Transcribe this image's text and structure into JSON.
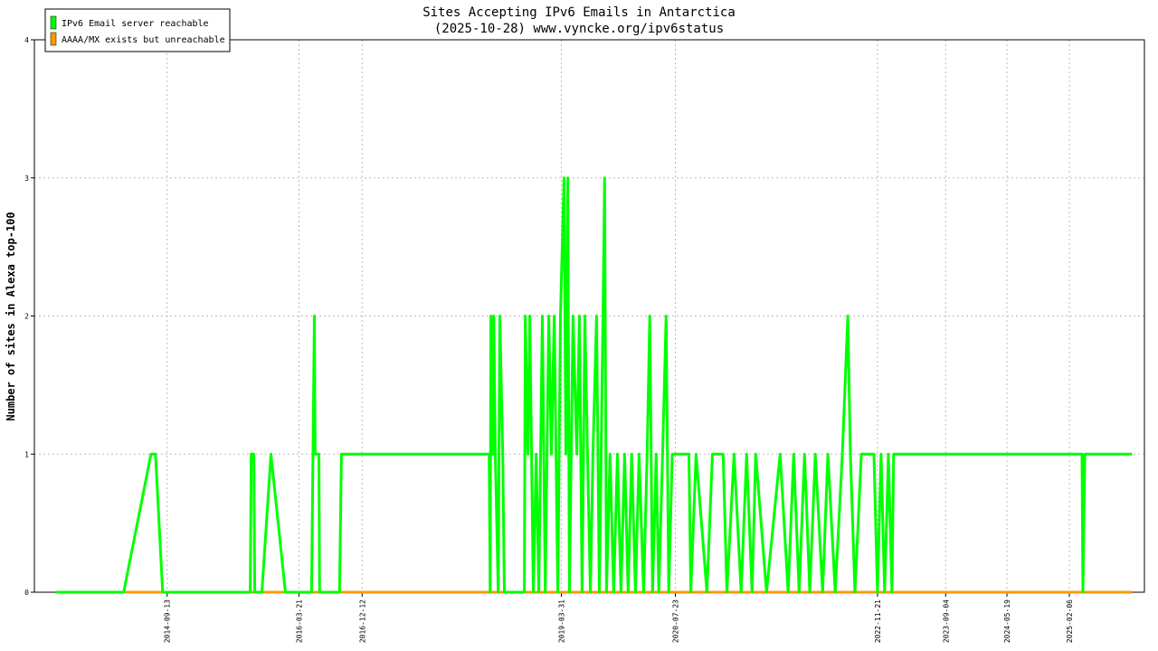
{
  "chart_data": {
    "type": "line",
    "title": "Sites Accepting IPv6 Emails in Antarctica",
    "subtitle": "(2025-10-28) www.vyncke.org/ipv6status",
    "y_label": "Number of sites in Alexa top-100",
    "xlim": [
      "2013-03-03",
      "2025-12-19"
    ],
    "xticks": [
      "2014-09-13",
      "2016-03-21",
      "2016-12-12",
      "2019-03-31",
      "2020-07-23",
      "2022-11-21",
      "2023-09-04",
      "2024-05-19",
      "2025-02-06"
    ],
    "ylim": [
      0,
      4
    ],
    "yticks": [
      0,
      1,
      2,
      3,
      4
    ],
    "grid": true,
    "legend": "top-left",
    "series": [
      {
        "name": "IPv6 Email server reachable",
        "color": "#00ff00",
        "x": [
          "2013-06-02",
          "2014-03-14",
          "2014-07-07",
          "2014-07-26",
          "2014-08-25",
          "2015-08-29",
          "2015-09-02",
          "2015-09-13",
          "2015-09-17",
          "2015-10-17",
          "2015-11-24",
          "2016-01-24",
          "2016-05-13",
          "2016-05-25",
          "2016-05-28",
          "2016-06-13",
          "2016-06-16",
          "2016-09-08",
          "2016-09-16",
          "2018-05-31",
          "2018-06-04",
          "2018-06-07",
          "2018-06-15",
          "2018-06-19",
          "2018-06-26",
          "2018-07-08",
          "2018-07-15",
          "2018-07-27",
          "2018-08-03",
          "2018-10-26",
          "2018-10-30",
          "2018-11-10",
          "2018-11-18",
          "2018-12-03",
          "2018-12-15",
          "2018-12-26",
          "2019-01-10",
          "2019-01-22",
          "2019-02-06",
          "2019-02-17",
          "2019-03-01",
          "2019-03-16",
          "2019-03-27",
          "2019-04-11",
          "2019-04-19",
          "2019-04-27",
          "2019-05-04",
          "2019-05-19",
          "2019-06-04",
          "2019-06-15",
          "2019-06-26",
          "2019-07-08",
          "2019-07-19",
          "2019-07-31",
          "2019-08-11",
          "2019-08-26",
          "2019-09-07",
          "2019-09-22",
          "2019-09-29",
          "2019-10-07",
          "2019-10-22",
          "2019-11-06",
          "2019-11-22",
          "2019-12-07",
          "2019-12-22",
          "2020-01-06",
          "2020-01-21",
          "2020-02-06",
          "2020-02-21",
          "2020-03-11",
          "2020-03-26",
          "2020-04-06",
          "2020-04-18",
          "2020-05-03",
          "2020-05-14",
          "2020-05-30",
          "2020-06-14",
          "2020-06-25",
          "2020-07-10",
          "2020-08-03",
          "2020-09-18",
          "2020-09-26",
          "2020-10-18",
          "2020-12-03",
          "2020-12-26",
          "2021-02-09",
          "2021-02-25",
          "2021-03-27",
          "2021-04-26",
          "2021-05-19",
          "2021-06-11",
          "2021-06-26",
          "2021-08-11",
          "2021-10-07",
          "2021-11-10",
          "2021-12-03",
          "2021-12-26",
          "2022-01-18",
          "2022-02-09",
          "2022-03-04",
          "2022-04-04",
          "2022-04-26",
          "2022-05-27",
          "2022-06-26",
          "2022-07-19",
          "2022-07-30",
          "2022-08-18",
          "2022-09-14",
          "2022-11-06",
          "2022-11-21",
          "2022-12-06",
          "2022-12-21",
          "2023-01-06",
          "2023-01-21",
          "2023-01-28",
          "2025-03-31",
          "2025-04-04",
          "2025-04-12",
          "2025-10-28"
        ],
        "values": [
          0,
          0,
          1,
          1,
          0,
          0,
          1,
          1,
          0,
          0,
          1,
          0,
          0,
          2,
          1,
          1,
          0,
          0,
          1,
          1,
          0,
          2,
          1,
          2,
          1,
          0,
          2,
          1,
          0,
          0,
          2,
          1,
          2,
          0,
          1,
          0,
          2,
          0,
          2,
          1,
          2,
          0,
          2,
          3,
          1,
          3,
          0,
          2,
          1,
          2,
          0,
          2,
          1,
          0,
          1,
          2,
          0,
          2,
          3,
          0,
          1,
          0,
          1,
          0,
          1,
          0,
          1,
          0,
          1,
          0,
          1,
          2,
          0,
          1,
          0,
          1,
          2,
          0,
          1,
          1,
          1,
          0,
          1,
          0,
          1,
          1,
          0,
          1,
          0,
          1,
          0,
          1,
          0,
          1,
          0,
          1,
          0,
          1,
          0,
          1,
          0,
          1,
          0,
          1,
          2,
          1,
          0,
          1,
          1,
          0,
          1,
          0,
          1,
          0,
          1,
          1,
          0,
          1,
          1
        ]
      },
      {
        "name": "AAAA/MX exists but unreachable",
        "color": "#ff9900",
        "x": [
          "2013-06-02",
          "2025-10-28"
        ],
        "values": [
          0,
          0
        ]
      }
    ]
  }
}
